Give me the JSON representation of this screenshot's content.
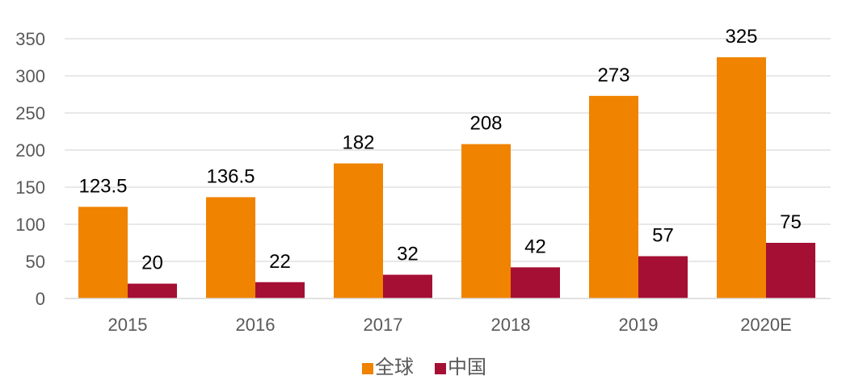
{
  "chart_data": {
    "type": "bar",
    "categories": [
      "2015",
      "2016",
      "2017",
      "2018",
      "2019",
      "2020E"
    ],
    "series": [
      {
        "name": "全球",
        "color": "#F08300",
        "values": [
          123.5,
          136.5,
          182,
          208,
          273,
          325
        ]
      },
      {
        "name": "中国",
        "color": "#A50F34",
        "values": [
          20,
          22,
          32,
          42,
          57,
          75
        ]
      }
    ],
    "data_labels": [
      [
        "123.5",
        "136.5",
        "182",
        "208",
        "273",
        "325"
      ],
      [
        "20",
        "22",
        "32",
        "42",
        "57",
        "75"
      ]
    ],
    "yticks": [
      0,
      50,
      100,
      150,
      200,
      250,
      300,
      350
    ],
    "ylim": [
      0,
      350
    ],
    "grid": true,
    "legend_position": "bottom",
    "title": "",
    "xlabel": "",
    "ylabel": ""
  }
}
